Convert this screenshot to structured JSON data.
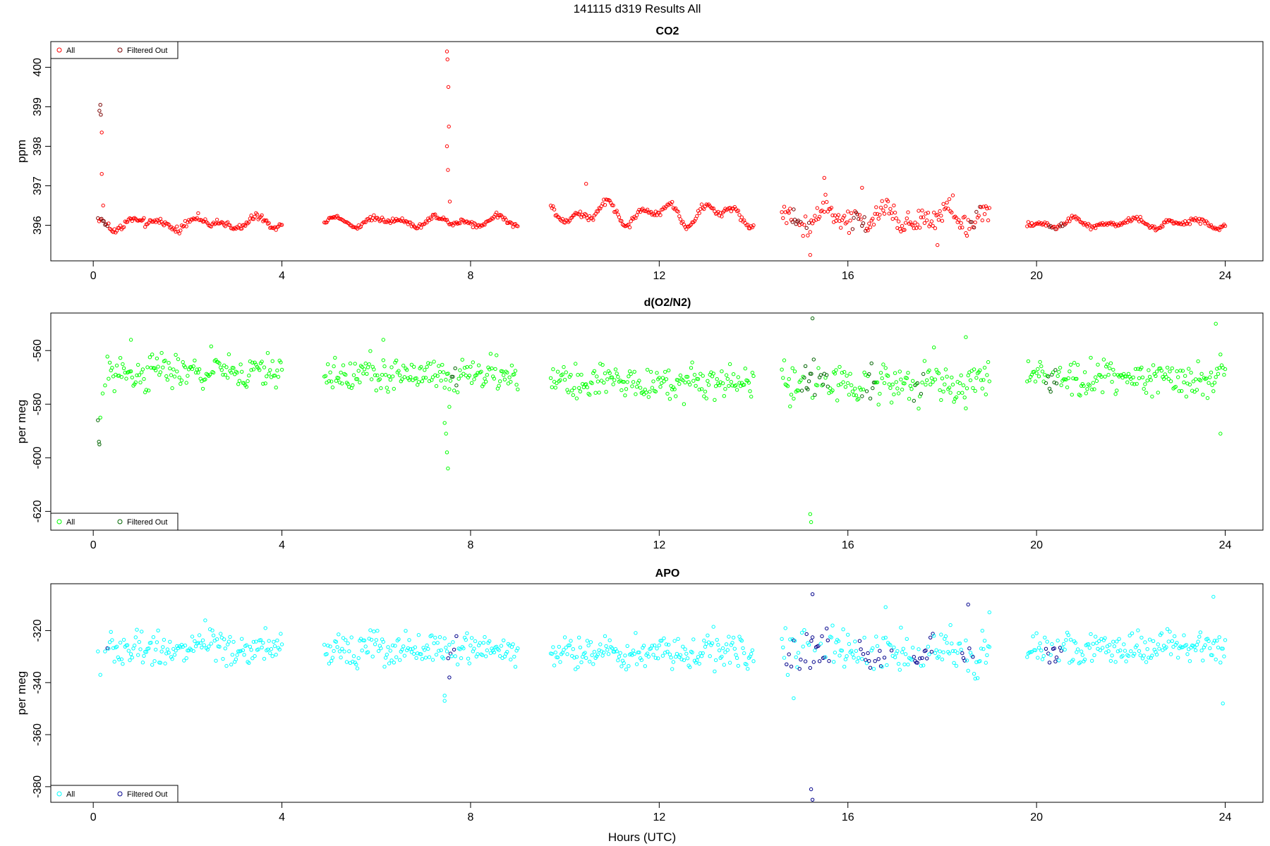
{
  "figure": {
    "title": "141115   d319   Results All",
    "xlabel": "Hours (UTC)"
  },
  "chart_data": [
    {
      "type": "scatter",
      "title": "CO2",
      "xlabel": "Hours (UTC)",
      "ylabel": "ppm",
      "xlim": [
        -0.9,
        24.8
      ],
      "ylim": [
        395.1,
        400.65
      ],
      "xticks": [
        0,
        4,
        8,
        12,
        16,
        20,
        24
      ],
      "yticks": [
        396,
        397,
        398,
        399,
        400
      ],
      "legend": {
        "position": "top-left",
        "entries": [
          "All",
          "Filtered Out"
        ]
      },
      "colors": {
        "all": "#ff0000",
        "filtered": "#7a0000"
      },
      "segments": [
        {
          "x_start": 0.1,
          "x_end": 4.0,
          "base": 396.05,
          "noise": 0.1,
          "osc": 0.18
        },
        {
          "x_start": 4.9,
          "x_end": 9.0,
          "base": 396.1,
          "noise": 0.08,
          "osc": 0.15
        },
        {
          "x_start": 9.7,
          "x_end": 14.0,
          "base": 396.3,
          "noise": 0.1,
          "osc": 0.35
        },
        {
          "x_start": 14.6,
          "x_end": 19.0,
          "base": 396.2,
          "noise": 0.35,
          "osc": 0.3
        },
        {
          "x_start": 19.8,
          "x_end": 24.0,
          "base": 396.05,
          "noise": 0.08,
          "osc": 0.15
        }
      ],
      "spikes": [
        {
          "x": 0.13,
          "y": 398.9
        },
        {
          "x": 0.15,
          "y": 399.05
        },
        {
          "x": 0.16,
          "y": 398.8
        },
        {
          "x": 0.18,
          "y": 398.35
        },
        {
          "x": 0.18,
          "y": 397.3
        },
        {
          "x": 0.21,
          "y": 396.5
        },
        {
          "x": 7.5,
          "y": 400.4
        },
        {
          "x": 7.51,
          "y": 400.2
        },
        {
          "x": 7.53,
          "y": 399.5
        },
        {
          "x": 7.54,
          "y": 398.5
        },
        {
          "x": 7.5,
          "y": 398.0
        },
        {
          "x": 7.52,
          "y": 397.4
        },
        {
          "x": 7.56,
          "y": 396.6
        },
        {
          "x": 10.45,
          "y": 397.05
        },
        {
          "x": 15.2,
          "y": 395.25
        },
        {
          "x": 15.5,
          "y": 397.2
        },
        {
          "x": 16.3,
          "y": 396.95
        },
        {
          "x": 17.9,
          "y": 395.5
        }
      ],
      "filtered_ranges": [
        [
          0.1,
          0.3
        ],
        [
          14.8,
          15.2
        ],
        [
          16.0,
          16.4
        ],
        [
          18.6,
          18.8
        ],
        [
          20.2,
          20.6
        ]
      ]
    },
    {
      "type": "scatter",
      "title": "d(O2/N2)",
      "xlabel": "Hours (UTC)",
      "ylabel": "per meg",
      "xlim": [
        -0.9,
        24.8
      ],
      "ylim": [
        -627,
        -546
      ],
      "xticks": [
        0,
        4,
        8,
        12,
        16,
        20,
        24
      ],
      "yticks": [
        -560,
        -580,
        -600,
        -620
      ],
      "legend": {
        "position": "bottom-left",
        "entries": [
          "All",
          "Filtered Out"
        ]
      },
      "colors": {
        "all": "#00ff00",
        "filtered": "#006400"
      },
      "segments": [
        {
          "x_start": 0.3,
          "x_end": 4.0,
          "base": -568,
          "noise": 4.5,
          "osc": 2.0
        },
        {
          "x_start": 4.9,
          "x_end": 9.0,
          "base": -569,
          "noise": 4.5,
          "osc": 2.0
        },
        {
          "x_start": 9.7,
          "x_end": 14.0,
          "base": -572,
          "noise": 4.5,
          "osc": 2.0
        },
        {
          "x_start": 14.6,
          "x_end": 19.0,
          "base": -572,
          "noise": 5.5,
          "osc": 2.5
        },
        {
          "x_start": 19.8,
          "x_end": 24.0,
          "base": -570,
          "noise": 4.5,
          "osc": 2.0
        }
      ],
      "spikes": [
        {
          "x": 0.1,
          "y": -586
        },
        {
          "x": 0.15,
          "y": -585
        },
        {
          "x": 0.12,
          "y": -594
        },
        {
          "x": 0.13,
          "y": -595
        },
        {
          "x": 0.2,
          "y": -576
        },
        {
          "x": 0.25,
          "y": -573
        },
        {
          "x": 7.45,
          "y": -587
        },
        {
          "x": 7.48,
          "y": -591
        },
        {
          "x": 7.5,
          "y": -598
        },
        {
          "x": 7.52,
          "y": -604
        },
        {
          "x": 7.55,
          "y": -581
        },
        {
          "x": 15.2,
          "y": -621
        },
        {
          "x": 15.22,
          "y": -624
        },
        {
          "x": 15.25,
          "y": -548
        },
        {
          "x": 18.5,
          "y": -555
        },
        {
          "x": 23.8,
          "y": -550
        },
        {
          "x": 23.9,
          "y": -591
        },
        {
          "x": 0.8,
          "y": -556
        },
        {
          "x": 6.15,
          "y": -556
        }
      ],
      "filtered_ranges": [
        [
          0.1,
          0.3
        ],
        [
          7.6,
          7.7
        ],
        [
          15.0,
          15.6
        ],
        [
          16.3,
          16.6
        ],
        [
          17.4,
          17.6
        ],
        [
          20.2,
          20.5
        ]
      ]
    },
    {
      "type": "scatter",
      "title": "APO",
      "xlabel": "Hours (UTC)",
      "ylabel": "per meg",
      "xlim": [
        -0.9,
        24.8
      ],
      "ylim": [
        -386,
        -302
      ],
      "xticks": [
        0,
        4,
        8,
        12,
        16,
        20,
        24
      ],
      "yticks": [
        -320,
        -340,
        -360,
        -380
      ],
      "legend": {
        "position": "bottom-left",
        "entries": [
          "All",
          "Filtered Out"
        ]
      },
      "colors": {
        "all": "#00ffff",
        "filtered": "#00008b"
      },
      "segments": [
        {
          "x_start": 0.3,
          "x_end": 4.0,
          "base": -327,
          "noise": 4.5,
          "osc": 2.0
        },
        {
          "x_start": 4.9,
          "x_end": 9.0,
          "base": -327,
          "noise": 4.5,
          "osc": 2.0
        },
        {
          "x_start": 9.7,
          "x_end": 14.0,
          "base": -328,
          "noise": 4.5,
          "osc": 2.0
        },
        {
          "x_start": 14.6,
          "x_end": 19.0,
          "base": -328,
          "noise": 6.0,
          "osc": 2.5
        },
        {
          "x_start": 19.8,
          "x_end": 24.0,
          "base": -327,
          "noise": 4.5,
          "osc": 2.0
        }
      ],
      "spikes": [
        {
          "x": 0.15,
          "y": -337
        },
        {
          "x": 0.1,
          "y": -328
        },
        {
          "x": 0.25,
          "y": -328
        },
        {
          "x": 7.45,
          "y": -345
        },
        {
          "x": 7.45,
          "y": -347
        },
        {
          "x": 7.55,
          "y": -338
        },
        {
          "x": 15.22,
          "y": -381
        },
        {
          "x": 15.25,
          "y": -385
        },
        {
          "x": 15.25,
          "y": -306
        },
        {
          "x": 16.8,
          "y": -311
        },
        {
          "x": 18.55,
          "y": -310
        },
        {
          "x": 19.0,
          "y": -313
        },
        {
          "x": 23.75,
          "y": -307
        },
        {
          "x": 23.95,
          "y": -348
        },
        {
          "x": 14.85,
          "y": -346
        }
      ],
      "filtered_ranges": [
        [
          0.0,
          0.3
        ],
        [
          7.5,
          7.7
        ],
        [
          14.7,
          15.6
        ],
        [
          16.2,
          17.0
        ],
        [
          17.4,
          17.8
        ],
        [
          18.4,
          18.8
        ],
        [
          20.2,
          20.6
        ]
      ]
    }
  ]
}
